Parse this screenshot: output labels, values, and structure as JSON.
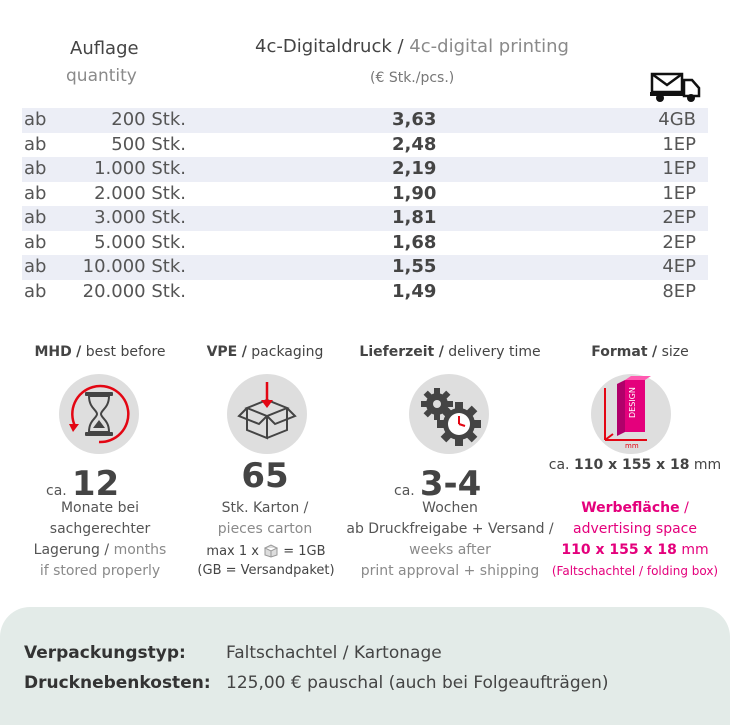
{
  "header": {
    "quantity_de": "Auflage",
    "quantity_en": "quantity",
    "print_de": "4c-Digitaldruck",
    "print_sep": " / ",
    "print_en": "4c-digital printing",
    "unit_note": "(€ Stk./pcs.)",
    "shipping_icon": "mail-truck-icon"
  },
  "rows": [
    {
      "prefix": "ab",
      "qty": "200 Stk.",
      "price": "3,63",
      "unit": "4GB"
    },
    {
      "prefix": "ab",
      "qty": "500 Stk.",
      "price": "2,48",
      "unit": "1EP"
    },
    {
      "prefix": "ab",
      "qty": "1.000 Stk.",
      "price": "2,19",
      "unit": "1EP"
    },
    {
      "prefix": "ab",
      "qty": "2.000 Stk.",
      "price": "1,90",
      "unit": "1EP"
    },
    {
      "prefix": "ab",
      "qty": "3.000 Stk.",
      "price": "1,81",
      "unit": "2EP"
    },
    {
      "prefix": "ab",
      "qty": "5.000 Stk.",
      "price": "1,68",
      "unit": "2EP"
    },
    {
      "prefix": "ab",
      "qty": "10.000 Stk.",
      "price": "1,55",
      "unit": "4EP"
    },
    {
      "prefix": "ab",
      "qty": "20.000 Stk.",
      "price": "1,49",
      "unit": "8EP"
    }
  ],
  "info": {
    "mhd": {
      "title_de": "MHD",
      "title_en": "best before",
      "icon": "hourglass-icon",
      "ca": "ca.",
      "value": "12",
      "line1": "Monate bei",
      "line2": "sachgerechter",
      "line3_de": "Lagerung",
      "line3_en": "months",
      "line4_en": "if stored properly"
    },
    "vpe": {
      "title_de": "VPE",
      "title_en": "packaging",
      "icon": "box-icon",
      "value": "65",
      "line1_de": "Stk. Karton",
      "line2_en": "pieces carton",
      "line3a": "max 1 x",
      "line3b": "= 1GB",
      "line4": "(GB = Versandpaket)"
    },
    "delivery": {
      "title_de": "Lieferzeit",
      "title_en": "delivery time",
      "icon": "gears-clock-icon",
      "ca": "ca.",
      "value": "3-4",
      "line1": "Wochen",
      "line2": "ab Druckfreigabe + Versand /",
      "line3_en": "weeks after",
      "line4_en": "print approval + shipping"
    },
    "format": {
      "title_de": "Format",
      "title_en": "size",
      "icon": "folding-box-design-icon",
      "icon_text": "DESIGN",
      "icon_mm": "mm",
      "size_ca": "ca.",
      "size_value": "110 x 155 x 18",
      "size_unit": "mm",
      "ad_de": "Werbefläche",
      "ad_en": "advertising space",
      "ad_size": "110 x 155 x 18",
      "ad_unit": "mm",
      "ad_note": "(Faltschachtel / folding box)"
    }
  },
  "footer": {
    "type_label": "Verpackungstyp:",
    "type_value": "Faltschachtel /  Kartonage",
    "cost_label": "Drucknebenkosten:",
    "cost_value": "125,00 € pauschal (auch bei Folgeaufträgen)"
  },
  "colors": {
    "accent_pink": "#e4007c",
    "accent_red": "#e30613",
    "row_shade": "#eceef6",
    "footer_bg": "#e3ebe8"
  }
}
